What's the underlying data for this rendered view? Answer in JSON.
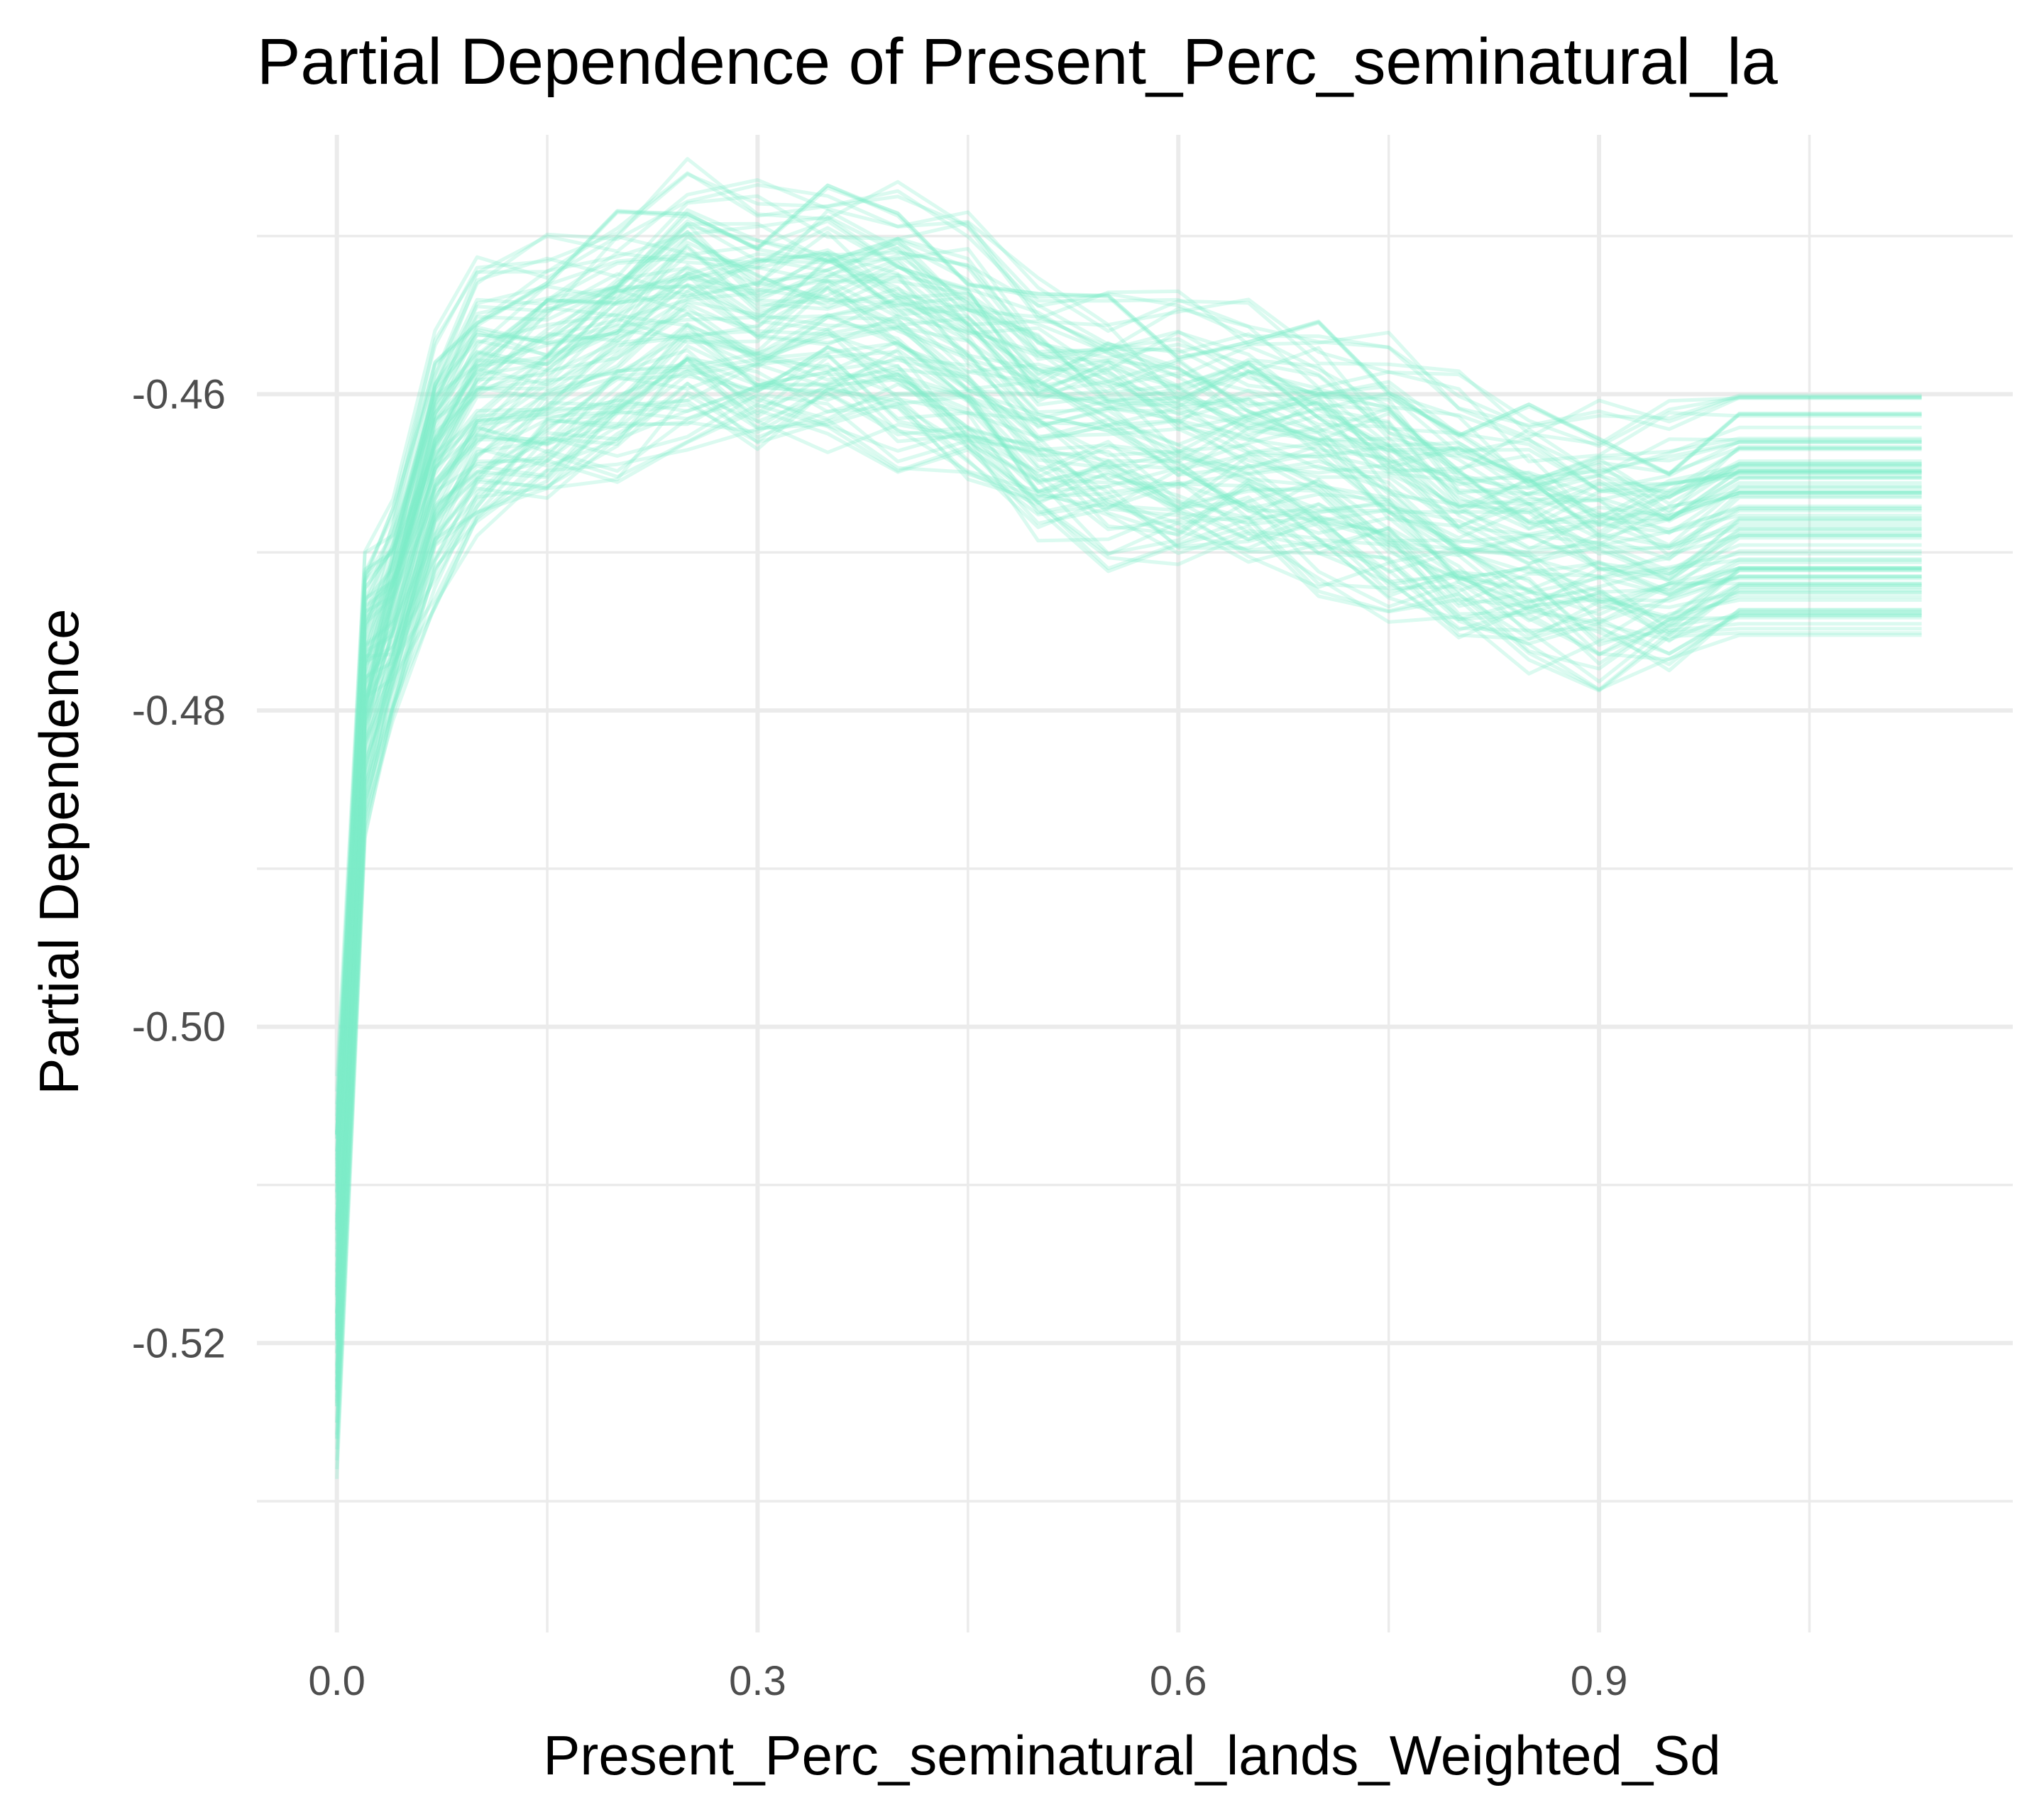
{
  "chart_data": {
    "type": "line",
    "title": "Partial Dependence of Present_Perc_seminatural_la",
    "xlabel": "Present_Perc_seminatural_lands_Weighted_Sd",
    "ylabel": "Partial Dependence",
    "xlim": [
      -0.057,
      1.195
    ],
    "ylim": [
      -0.5383,
      -0.4436
    ],
    "x_ticks": [
      0.0,
      0.3,
      0.6,
      0.9
    ],
    "x_tick_labels": [
      "0.0",
      "0.3",
      "0.6",
      "0.9"
    ],
    "x_minor_ticks": [
      0.15,
      0.45,
      0.75,
      1.05
    ],
    "y_ticks": [
      -0.52,
      -0.5,
      -0.48,
      -0.46
    ],
    "y_tick_labels": [
      "-0.52",
      "-0.50",
      "-0.48",
      "-0.46"
    ],
    "y_minor_ticks": [
      -0.53,
      -0.51,
      -0.49,
      -0.47,
      -0.45
    ],
    "grid": true,
    "legend": "none",
    "line_color": "#7EEDC8",
    "line_opacity": 0.28,
    "series_count": 100,
    "x": [
      0.0,
      0.02,
      0.04,
      0.07,
      0.1,
      0.15,
      0.2,
      0.25,
      0.3,
      0.35,
      0.4,
      0.45,
      0.5,
      0.55,
      0.6,
      0.65,
      0.7,
      0.75,
      0.8,
      0.85,
      0.9,
      0.95,
      1.0,
      1.05,
      1.13
    ],
    "mean_curve": [
      -0.516,
      -0.479,
      -0.474,
      -0.465,
      -0.461,
      -0.459,
      -0.457,
      -0.455,
      -0.456,
      -0.455,
      -0.456,
      -0.458,
      -0.461,
      -0.462,
      -0.463,
      -0.463,
      -0.464,
      -0.466,
      -0.468,
      -0.469,
      -0.47,
      -0.47,
      -0.468,
      -0.468,
      -0.468
    ],
    "offset_range": [
      -0.0075,
      0.0082
    ]
  }
}
